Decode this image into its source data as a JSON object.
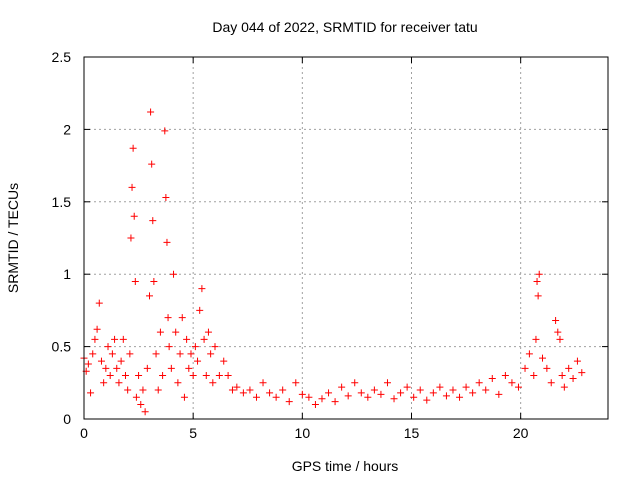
{
  "chart_data": {
    "type": "scatter",
    "title": "Day 044 of 2022, SRMTID for receiver tatu",
    "xlabel": "GPS time / hours",
    "ylabel": "SRMTID / TECUs",
    "xlim": [
      0,
      24
    ],
    "ylim": [
      0,
      2.5
    ],
    "xticks": [
      0,
      5,
      10,
      15,
      20
    ],
    "xtick_labels": [
      "0",
      "5",
      "10",
      "15",
      "20"
    ],
    "yticks": [
      0,
      0.5,
      1,
      1.5,
      2,
      2.5
    ],
    "ytick_labels": [
      "0",
      "0.5",
      "1",
      "1.5",
      "2",
      "2.5"
    ],
    "grid": true,
    "marker": "plus",
    "colors": {
      "series": "#ff0000",
      "grid": "#a0a0a0",
      "axis": "#000000"
    },
    "series": [
      {
        "name": "SRMTID",
        "x": [
          0.0,
          0.1,
          0.2,
          0.3,
          0.4,
          0.5,
          0.6,
          0.7,
          0.8,
          0.9,
          1.0,
          1.1,
          1.2,
          1.3,
          1.4,
          1.5,
          1.6,
          1.7,
          1.8,
          1.9,
          2.0,
          2.1,
          2.15,
          2.2,
          2.25,
          2.3,
          2.35,
          2.4,
          2.5,
          2.6,
          2.7,
          2.8,
          2.9,
          3.0,
          3.05,
          3.1,
          3.15,
          3.2,
          3.3,
          3.4,
          3.5,
          3.6,
          3.7,
          3.75,
          3.8,
          3.85,
          3.9,
          4.0,
          4.1,
          4.2,
          4.3,
          4.4,
          4.5,
          4.6,
          4.7,
          4.8,
          4.9,
          5.0,
          5.1,
          5.2,
          5.3,
          5.4,
          5.5,
          5.6,
          5.7,
          5.8,
          5.9,
          6.0,
          6.2,
          6.4,
          6.6,
          6.8,
          7.0,
          7.3,
          7.6,
          7.9,
          8.2,
          8.5,
          8.8,
          9.1,
          9.4,
          9.7,
          10.0,
          10.3,
          10.6,
          10.9,
          11.2,
          11.5,
          11.8,
          12.1,
          12.4,
          12.7,
          13.0,
          13.3,
          13.6,
          13.9,
          14.2,
          14.5,
          14.8,
          15.1,
          15.4,
          15.7,
          16.0,
          16.3,
          16.6,
          16.9,
          17.2,
          17.5,
          17.8,
          18.1,
          18.4,
          18.7,
          19.0,
          19.3,
          19.6,
          19.9,
          20.2,
          20.4,
          20.6,
          20.7,
          20.75,
          20.8,
          20.85,
          21.0,
          21.2,
          21.4,
          21.6,
          21.7,
          21.8,
          21.9,
          22.0,
          22.2,
          22.4,
          22.6,
          22.8
        ],
        "y": [
          0.42,
          0.33,
          0.38,
          0.18,
          0.45,
          0.55,
          0.62,
          0.8,
          0.4,
          0.25,
          0.35,
          0.5,
          0.3,
          0.45,
          0.55,
          0.35,
          0.25,
          0.4,
          0.55,
          0.3,
          0.2,
          0.45,
          1.25,
          1.6,
          1.87,
          1.4,
          0.95,
          0.15,
          0.3,
          0.1,
          0.2,
          0.05,
          0.35,
          0.85,
          2.12,
          1.76,
          1.37,
          0.95,
          0.45,
          0.2,
          0.6,
          0.3,
          1.99,
          1.53,
          1.22,
          0.7,
          0.5,
          0.35,
          1.0,
          0.6,
          0.25,
          0.45,
          0.7,
          0.15,
          0.55,
          0.35,
          0.45,
          0.3,
          0.5,
          0.4,
          0.75,
          0.9,
          0.55,
          0.3,
          0.6,
          0.45,
          0.25,
          0.5,
          0.3,
          0.4,
          0.3,
          0.2,
          0.22,
          0.18,
          0.2,
          0.15,
          0.25,
          0.18,
          0.15,
          0.2,
          0.12,
          0.25,
          0.17,
          0.15,
          0.1,
          0.14,
          0.18,
          0.12,
          0.22,
          0.16,
          0.25,
          0.18,
          0.15,
          0.2,
          0.17,
          0.25,
          0.14,
          0.18,
          0.22,
          0.15,
          0.2,
          0.13,
          0.18,
          0.22,
          0.16,
          0.2,
          0.15,
          0.22,
          0.18,
          0.25,
          0.2,
          0.28,
          0.17,
          0.3,
          0.25,
          0.22,
          0.35,
          0.45,
          0.3,
          0.55,
          0.95,
          0.85,
          1.0,
          0.42,
          0.35,
          0.25,
          0.68,
          0.6,
          0.55,
          0.3,
          0.22,
          0.35,
          0.28,
          0.4,
          0.32
        ]
      }
    ]
  }
}
